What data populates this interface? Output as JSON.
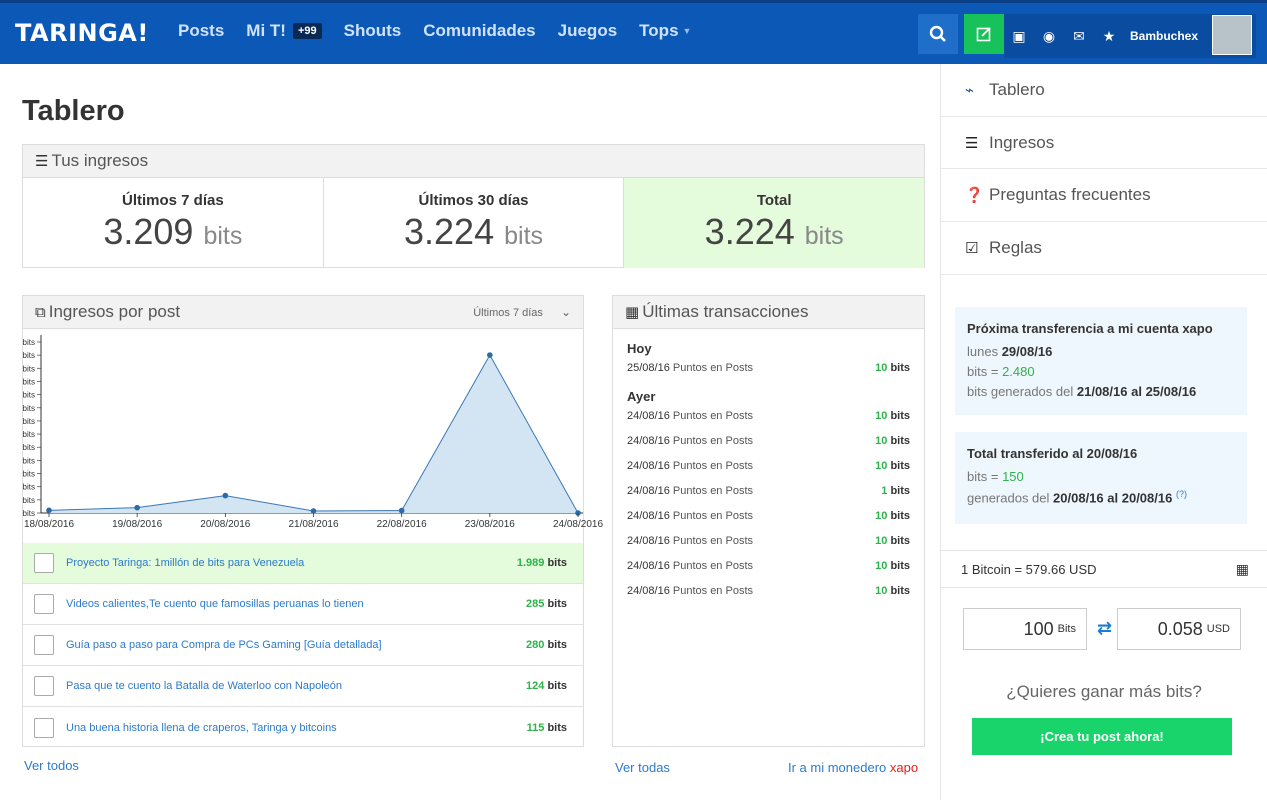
{
  "header": {
    "logo": "TARINGA!",
    "nav": [
      {
        "label": "Posts"
      },
      {
        "label": "Mi T!",
        "badge": "+99"
      },
      {
        "label": "Shouts"
      },
      {
        "label": "Comunidades"
      },
      {
        "label": "Juegos"
      },
      {
        "label": "Tops"
      }
    ],
    "username": "Bambuchex"
  },
  "page": {
    "title": "Tablero"
  },
  "income": {
    "title": "Tus ingresos",
    "stats": [
      {
        "label": "Últimos 7 días",
        "value": "3.209",
        "unit": "bits"
      },
      {
        "label": "Últimos 30 días",
        "value": "3.224",
        "unit": "bits"
      },
      {
        "label": "Total",
        "value": "3.224",
        "unit": "bits"
      }
    ]
  },
  "posts_panel": {
    "title": "Ingresos por post",
    "period": "Últimos 7 días",
    "rows": [
      {
        "title": "Proyecto Taringa: 1millón de bits para Venezuela",
        "value": "1.989",
        "unit": "bits"
      },
      {
        "title": "Videos calientes,Te cuento que famosillas peruanas lo tienen",
        "value": "285",
        "unit": "bits"
      },
      {
        "title": "Guía paso a paso para Compra de PCs Gaming [Guía detallada]",
        "value": "280",
        "unit": "bits"
      },
      {
        "title": "Pasa que te cuento la Batalla de Waterloo con Napoleón",
        "value": "124",
        "unit": "bits"
      },
      {
        "title": "Una buena historia llena de craperos, Taringa y bitcoins",
        "value": "115",
        "unit": "bits"
      }
    ],
    "see_all": "Ver todos"
  },
  "chart_data": {
    "type": "area",
    "x": [
      "18/08/2016",
      "19/08/2016",
      "20/08/2016",
      "21/08/2016",
      "22/08/2016",
      "23/08/2016",
      "24/08/2016"
    ],
    "series": [
      {
        "values": [
          20,
          40,
          130,
          15,
          18,
          1180,
          0
        ]
      }
    ],
    "ylabel": "",
    "ylim": [
      0,
      1300
    ],
    "grid": false,
    "ytick_label": "bits"
  },
  "transactions": {
    "title": "Últimas transacciones",
    "groups": [
      {
        "label": "Hoy",
        "items": [
          {
            "date": "25/08/16",
            "desc": "Puntos en Posts",
            "value": "10",
            "unit": "bits"
          }
        ]
      },
      {
        "label": "Ayer",
        "items": [
          {
            "date": "24/08/16",
            "desc": "Puntos en Posts",
            "value": "10",
            "unit": "bits"
          },
          {
            "date": "24/08/16",
            "desc": "Puntos en Posts",
            "value": "10",
            "unit": "bits"
          },
          {
            "date": "24/08/16",
            "desc": "Puntos en Posts",
            "value": "10",
            "unit": "bits"
          },
          {
            "date": "24/08/16",
            "desc": "Puntos en Posts",
            "value": "1",
            "unit": "bits"
          },
          {
            "date": "24/08/16",
            "desc": "Puntos en Posts",
            "value": "10",
            "unit": "bits"
          },
          {
            "date": "24/08/16",
            "desc": "Puntos en Posts",
            "value": "10",
            "unit": "bits"
          },
          {
            "date": "24/08/16",
            "desc": "Puntos en Posts",
            "value": "10",
            "unit": "bits"
          },
          {
            "date": "24/08/16",
            "desc": "Puntos en Posts",
            "value": "10",
            "unit": "bits"
          }
        ]
      }
    ],
    "see_all": "Ver todas",
    "wallet_link": "Ir a mi monedero",
    "wallet_brand": "xapo"
  },
  "sidebar": {
    "items": [
      {
        "label": "Tablero",
        "icon": "dashboard-icon"
      },
      {
        "label": "Ingresos",
        "icon": "coins-icon"
      },
      {
        "label": "Preguntas frecuentes",
        "icon": "question-icon"
      },
      {
        "label": "Reglas",
        "icon": "checkbox-icon"
      }
    ],
    "next_transfer": {
      "title": "Próxima transferencia a mi cuenta xapo",
      "date_prefix": "lunes",
      "date": "29/08/16",
      "bits_prefix": "bits =",
      "bits": "2.480",
      "range_prefix": "bits generados del",
      "range_from": "21/08/16",
      "range_mid": "al",
      "range_to": "25/08/16"
    },
    "total_transfer": {
      "title": "Total transferido al 20/08/16",
      "bits_prefix": "bits =",
      "bits": "150",
      "range_prefix": "generados del",
      "range_from": "20/08/16",
      "range_mid": "al",
      "range_to": "20/08/16",
      "note": "(?)"
    },
    "btc_rate": "1 Bitcoin = 579.66 USD",
    "converter": {
      "bits_value": "100",
      "bits_unit": "Bits",
      "usd_value": "0.058",
      "usd_unit": "USD"
    },
    "cta_text": "¿Quieres ganar más bits?",
    "cta_button": "¡Crea tu post ahora!"
  },
  "colors": {
    "header": "#0c58b6",
    "accent_green": "#2db34a",
    "cta": "#18d46a",
    "highlight": "#e4fbdc"
  }
}
